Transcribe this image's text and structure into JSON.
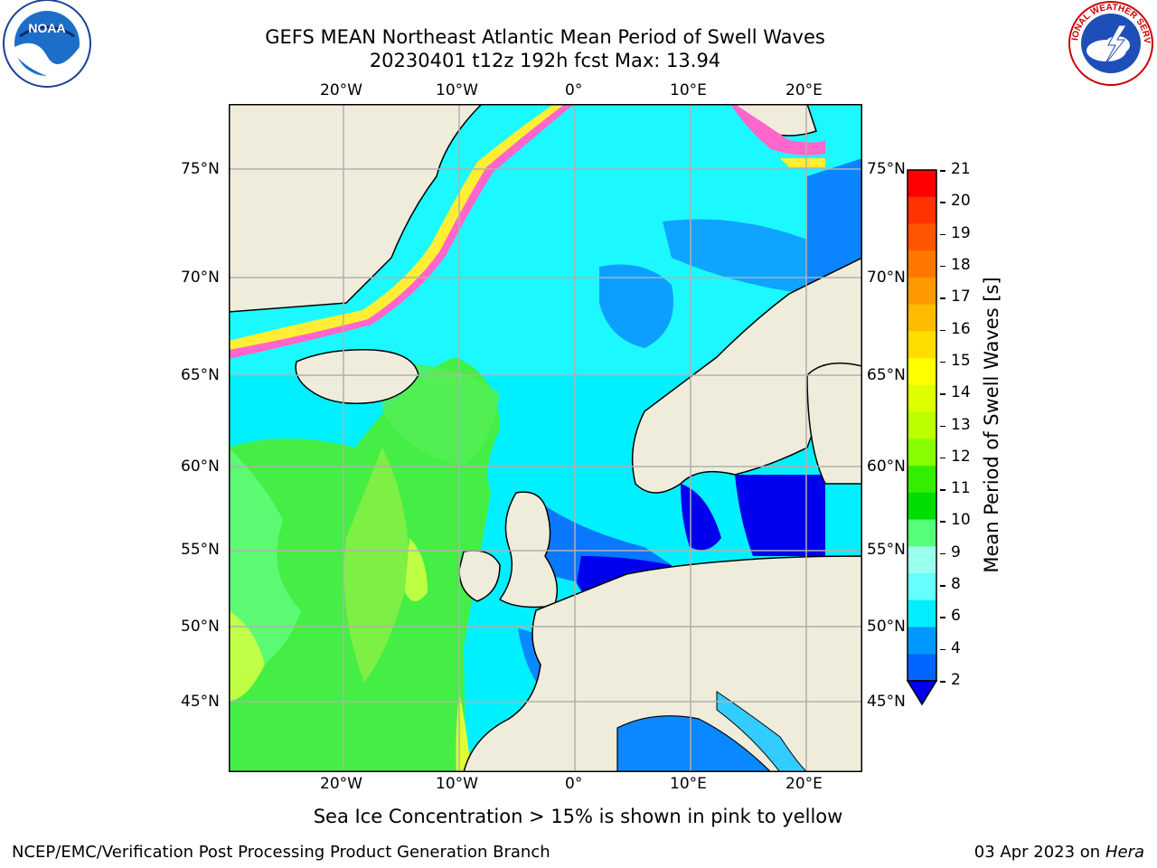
{
  "header": {
    "title_line1": "GEFS MEAN Northeast Atlantic Mean Period of Swell Waves",
    "title_line2": "20230401 t12z 192h fcst   Max: 13.94"
  },
  "logos": {
    "noaa_text": "NOAA",
    "noaa_ring": "NATIONAL OCEANIC AND ATMOSPHERIC ADMINISTRATION · U.S. DEPARTMENT OF COMMERCE",
    "nws_ring": "NATIONAL WEATHER SERVICE"
  },
  "map": {
    "lon_labels_top": [
      "20°W",
      "10°W",
      "0°",
      "10°E",
      "20°E"
    ],
    "lon_labels_bottom": [
      "20°W",
      "10°W",
      "0°",
      "10°E",
      "20°E"
    ],
    "lat_labels_left": [
      "75°N",
      "70°N",
      "65°N",
      "60°N",
      "55°N",
      "50°N",
      "45°N"
    ],
    "lat_labels_right": [
      "75°N",
      "70°N",
      "65°N",
      "60°N",
      "55°N",
      "50°N",
      "45°N"
    ],
    "colors": {
      "land": "#efecdc",
      "gridline": "#b0b0b0",
      "ocean_low": "#0066ff",
      "ocean_mid": "#00ffff",
      "ocean_high": "#33ff33"
    }
  },
  "colorbar": {
    "label": "Mean Period of Swell Waves [s]",
    "ticks": [
      "21",
      "20",
      "19",
      "18",
      "17",
      "16",
      "15",
      "14",
      "13",
      "12",
      "11",
      "10",
      "9",
      "8",
      "6",
      "4",
      "2"
    ],
    "colors_top_to_bottom": [
      "#ff0000",
      "#ff3300",
      "#ff5500",
      "#ff7700",
      "#ff9900",
      "#ffbb00",
      "#ffdd00",
      "#ffff00",
      "#ddff00",
      "#bbff00",
      "#88ff00",
      "#33ee00",
      "#00dd00",
      "#55ff77",
      "#99ffee",
      "#66ffff",
      "#00eeff",
      "#0099ff",
      "#0066ff"
    ],
    "extend_color": "#0000ee"
  },
  "note": "Sea Ice Concentration > 15% is shown in pink to yellow",
  "footer": {
    "left": "NCEP/EMC/Verification Post Processing Product Generation Branch",
    "right_date": "03 Apr 2023 on ",
    "right_host": "Hera"
  }
}
